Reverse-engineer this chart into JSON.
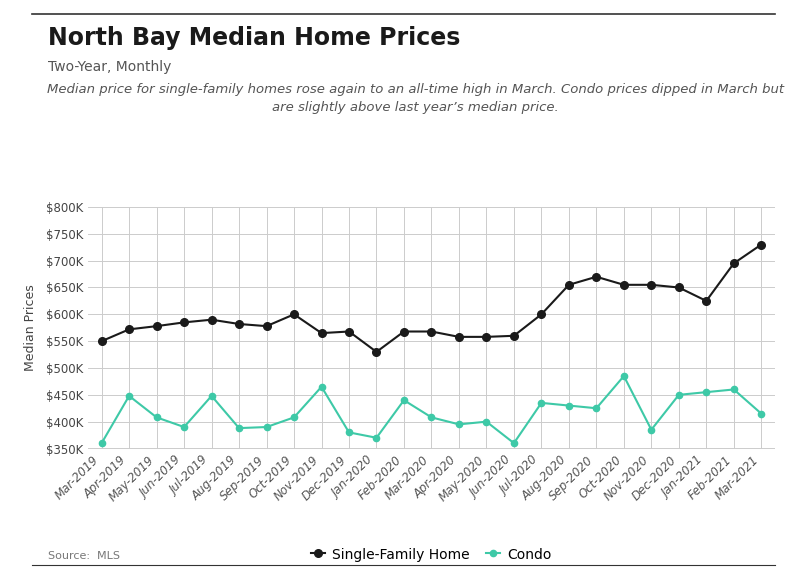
{
  "title": "North Bay Median Home Prices",
  "subtitle": "Two-Year, Monthly",
  "annotation": "Median price for single-family homes rose again to an all-time high in March. Condo prices dipped in March but\nare slightly above last year’s median price.",
  "source": "Source:  MLS",
  "ylabel": "Median Prices",
  "ylim": [
    350000,
    800000
  ],
  "yticks": [
    350000,
    400000,
    450000,
    500000,
    550000,
    600000,
    650000,
    700000,
    750000,
    800000
  ],
  "categories": [
    "Mar-2019",
    "Apr-2019",
    "May-2019",
    "Jun-2019",
    "Jul-2019",
    "Aug-2019",
    "Sep-2019",
    "Oct-2019",
    "Nov-2019",
    "Dec-2019",
    "Jan-2020",
    "Feb-2020",
    "Mar-2020",
    "Apr-2020",
    "May-2020",
    "Jun-2020",
    "Jul-2020",
    "Aug-2020",
    "Sep-2020",
    "Oct-2020",
    "Nov-2020",
    "Dec-2020",
    "Jan-2021",
    "Feb-2021",
    "Mar-2021"
  ],
  "sfh_values": [
    550000,
    572000,
    578000,
    585000,
    590000,
    582000,
    578000,
    600000,
    565000,
    568000,
    530000,
    568000,
    568000,
    558000,
    558000,
    560000,
    600000,
    655000,
    670000,
    655000,
    655000,
    650000,
    625000,
    695000,
    730000
  ],
  "condo_values": [
    360000,
    448000,
    408000,
    390000,
    448000,
    388000,
    390000,
    408000,
    465000,
    380000,
    370000,
    440000,
    408000,
    395000,
    400000,
    360000,
    435000,
    430000,
    425000,
    485000,
    385000,
    450000,
    455000,
    460000,
    415000
  ],
  "sfh_color": "#1a1a1a",
  "condo_color": "#3ec9a7",
  "bg_color": "#ffffff",
  "grid_color": "#cccccc",
  "title_fontsize": 17,
  "subtitle_fontsize": 10,
  "annotation_fontsize": 9.5,
  "tick_fontsize": 8.5,
  "ylabel_fontsize": 9
}
